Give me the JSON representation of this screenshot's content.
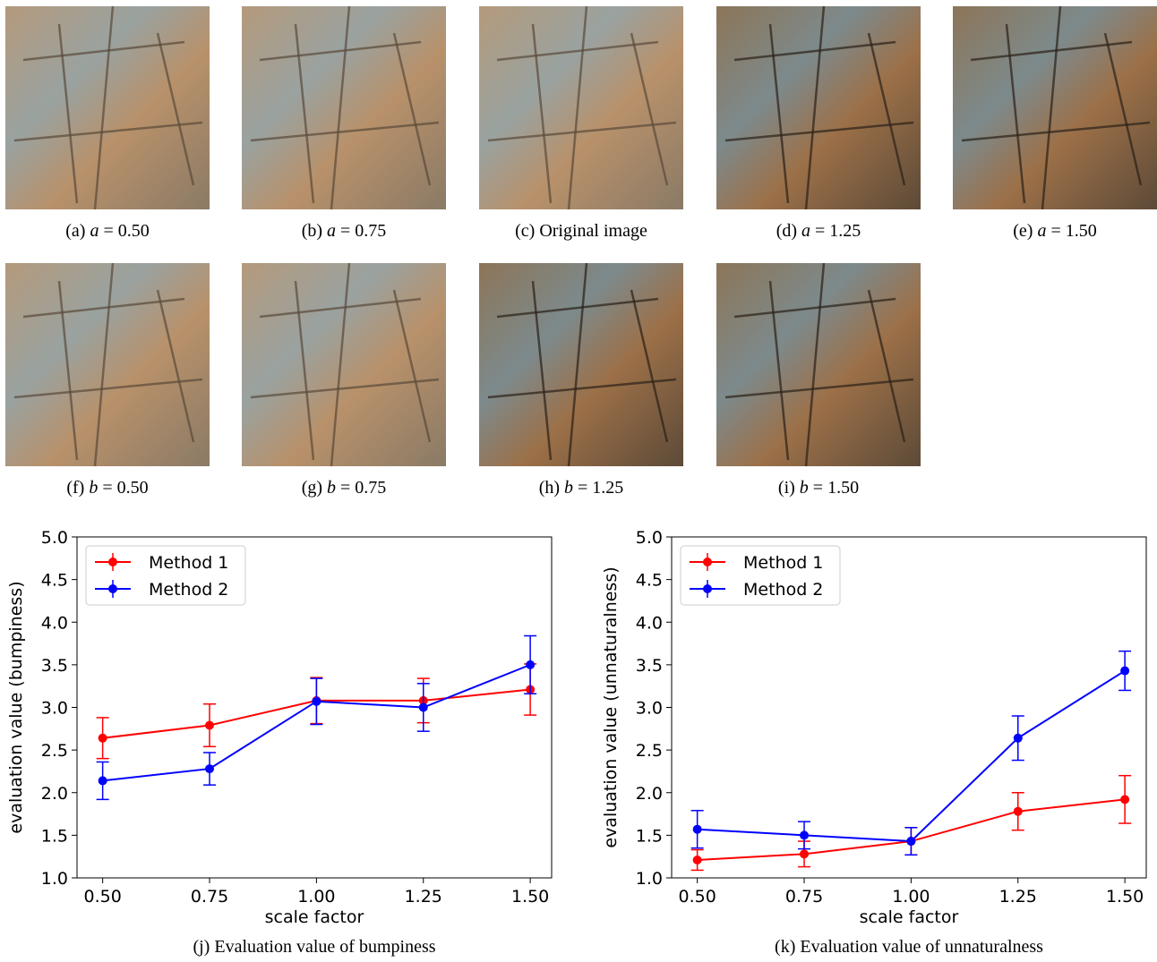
{
  "figures": [
    {
      "label": "(a)",
      "variable": "a",
      "relation": "= 0.50"
    },
    {
      "label": "(b)",
      "variable": "a",
      "relation": "= 0.75"
    },
    {
      "label": "(c)",
      "text": "Original image"
    },
    {
      "label": "(d)",
      "variable": "a",
      "relation": "= 1.25"
    },
    {
      "label": "(e)",
      "variable": "a",
      "relation": "= 1.50"
    },
    {
      "label": "(f)",
      "variable": "b",
      "relation": "= 0.50"
    },
    {
      "label": "(g)",
      "variable": "b",
      "relation": "= 0.75"
    },
    {
      "label": "(h)",
      "variable": "b",
      "relation": "= 1.25"
    },
    {
      "label": "(i)",
      "variable": "b",
      "relation": "= 1.50"
    }
  ],
  "chart_data": [
    {
      "type": "errorbar-line",
      "caption": "(j) Evaluation value of bumpiness",
      "xlabel": "scale factor",
      "ylabel": "evaluation value (bumpiness)",
      "x": [
        0.5,
        0.75,
        1.0,
        1.25,
        1.5
      ],
      "series": [
        {
          "name": "Method 1",
          "color": "#ff0000",
          "values": [
            2.64,
            2.79,
            3.08,
            3.08,
            3.21
          ],
          "errors": [
            0.24,
            0.25,
            0.27,
            0.26,
            0.3
          ]
        },
        {
          "name": "Method 2",
          "color": "#0000ff",
          "values": [
            2.14,
            2.28,
            3.07,
            3.0,
            3.5
          ],
          "errors": [
            0.22,
            0.19,
            0.27,
            0.28,
            0.34
          ]
        }
      ],
      "xlim": [
        0.44,
        1.55
      ],
      "ylim": [
        1.0,
        5.0
      ],
      "xticks": [
        {
          "value": 0.5,
          "label": "0.50"
        },
        {
          "value": 0.75,
          "label": "0.75"
        },
        {
          "value": 1.0,
          "label": "1.00"
        },
        {
          "value": 1.25,
          "label": "1.25"
        },
        {
          "value": 1.5,
          "label": "1.50"
        }
      ],
      "yticks": [
        {
          "value": 1,
          "label": "1.0"
        },
        {
          "value": 1.5,
          "label": "1.5"
        },
        {
          "value": 2,
          "label": "2.0"
        },
        {
          "value": 2.5,
          "label": "2.5"
        },
        {
          "value": 3,
          "label": "3.0"
        },
        {
          "value": 3.5,
          "label": "3.5"
        },
        {
          "value": 4,
          "label": "4.0"
        },
        {
          "value": 4.5,
          "label": "4.5"
        },
        {
          "value": 5,
          "label": "5.0"
        }
      ],
      "legend": "upper left"
    },
    {
      "type": "errorbar-line",
      "caption": "(k) Evaluation value of unnaturalness",
      "xlabel": "scale factor",
      "ylabel": "evaluation value (unnaturalness)",
      "x": [
        0.5,
        0.75,
        1.0,
        1.25,
        1.5
      ],
      "series": [
        {
          "name": "Method 1",
          "color": "#ff0000",
          "values": [
            1.21,
            1.28,
            1.43,
            1.78,
            1.92
          ],
          "errors": [
            0.12,
            0.15,
            0.16,
            0.22,
            0.28
          ]
        },
        {
          "name": "Method 2",
          "color": "#0000ff",
          "values": [
            1.57,
            1.5,
            1.43,
            2.64,
            3.43
          ],
          "errors": [
            0.22,
            0.16,
            0.16,
            0.26,
            0.23
          ]
        }
      ],
      "xlim": [
        0.44,
        1.55
      ],
      "ylim": [
        1.0,
        5.0
      ],
      "xticks": [
        {
          "value": 0.5,
          "label": "0.50"
        },
        {
          "value": 0.75,
          "label": "0.75"
        },
        {
          "value": 1.0,
          "label": "1.00"
        },
        {
          "value": 1.25,
          "label": "1.25"
        },
        {
          "value": 1.5,
          "label": "1.50"
        }
      ],
      "yticks": [
        {
          "value": 1,
          "label": "1.0"
        },
        {
          "value": 1.5,
          "label": "1.5"
        },
        {
          "value": 2,
          "label": "2.0"
        },
        {
          "value": 2.5,
          "label": "2.5"
        },
        {
          "value": 3,
          "label": "3.0"
        },
        {
          "value": 3.5,
          "label": "3.5"
        },
        {
          "value": 4,
          "label": "4.0"
        },
        {
          "value": 4.5,
          "label": "4.5"
        },
        {
          "value": 5,
          "label": "5.0"
        }
      ],
      "legend": "upper left"
    }
  ]
}
